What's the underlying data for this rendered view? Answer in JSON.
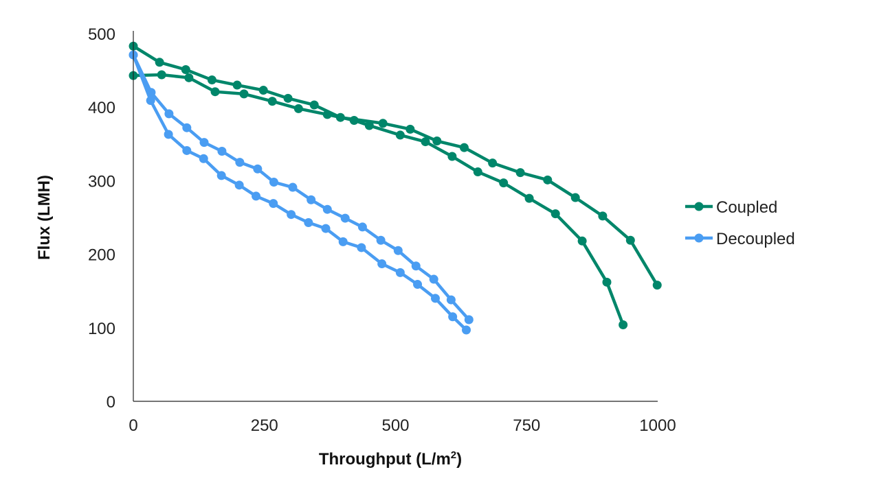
{
  "chart_data": {
    "type": "line",
    "title": "",
    "xlabel": "Throughput (L/m",
    "xlabel_sup": "2",
    "xlabel_close": ")",
    "ylabel": "Flux (LMH)",
    "xlim": [
      0,
      1000
    ],
    "ylim": [
      0,
      500
    ],
    "xticks": [
      0,
      250,
      500,
      750,
      1000
    ],
    "yticks": [
      0,
      100,
      200,
      300,
      400,
      500
    ],
    "grid": false,
    "legend_position": "right",
    "series": [
      {
        "name": "Coupled",
        "color": "#00866a",
        "runs": [
          [
            [
              0,
              483
            ],
            [
              50,
              461
            ],
            [
              100,
              451
            ],
            [
              150,
              437
            ],
            [
              198,
              430
            ],
            [
              248,
              423
            ],
            [
              295,
              412
            ],
            [
              345,
              403
            ],
            [
              395,
              386
            ],
            [
              476,
              378
            ],
            [
              528,
              370
            ],
            [
              579,
              354
            ],
            [
              631,
              345
            ],
            [
              685,
              324
            ],
            [
              738,
              311
            ],
            [
              790,
              301
            ],
            [
              843,
              277
            ],
            [
              895,
              252
            ],
            [
              948,
              219
            ],
            [
              999,
              158
            ]
          ],
          [
            [
              0,
              443
            ],
            [
              54,
              444
            ],
            [
              106,
              440
            ],
            [
              156,
              421
            ],
            [
              211,
              418
            ],
            [
              265,
              408
            ],
            [
              315,
              398
            ],
            [
              370,
              390
            ],
            [
              421,
              382
            ],
            [
              450,
              375
            ],
            [
              509,
              362
            ],
            [
              557,
              353
            ],
            [
              608,
              333
            ],
            [
              657,
              312
            ],
            [
              706,
              297
            ],
            [
              755,
              276
            ],
            [
              805,
              255
            ],
            [
              856,
              218
            ],
            [
              903,
              162
            ],
            [
              934,
              104
            ]
          ]
        ]
      },
      {
        "name": "Decoupled",
        "color": "#4a9df2",
        "runs": [
          [
            [
              0,
              471
            ],
            [
              34,
              420
            ],
            [
              68,
              391
            ],
            [
              102,
              372
            ],
            [
              135,
              352
            ],
            [
              169,
              340
            ],
            [
              203,
              325
            ],
            [
              237,
              316
            ],
            [
              268,
              298
            ],
            [
              304,
              291
            ],
            [
              339,
              274
            ],
            [
              370,
              261
            ],
            [
              404,
              249
            ],
            [
              437,
              237
            ],
            [
              472,
              219
            ],
            [
              505,
              205
            ],
            [
              539,
              184
            ],
            [
              573,
              166
            ],
            [
              606,
              138
            ],
            [
              640,
              111
            ]
          ],
          [
            [
              0,
              471
            ],
            [
              33,
              409
            ],
            [
              67,
              363
            ],
            [
              102,
              341
            ],
            [
              134,
              330
            ],
            [
              168,
              307
            ],
            [
              202,
              294
            ],
            [
              234,
              279
            ],
            [
              267,
              269
            ],
            [
              301,
              254
            ],
            [
              334,
              243
            ],
            [
              367,
              235
            ],
            [
              400,
              217
            ],
            [
              435,
              209
            ],
            [
              474,
              187
            ],
            [
              509,
              175
            ],
            [
              542,
              159
            ],
            [
              576,
              140
            ],
            [
              609,
              115
            ],
            [
              635,
              97
            ]
          ]
        ]
      }
    ]
  }
}
